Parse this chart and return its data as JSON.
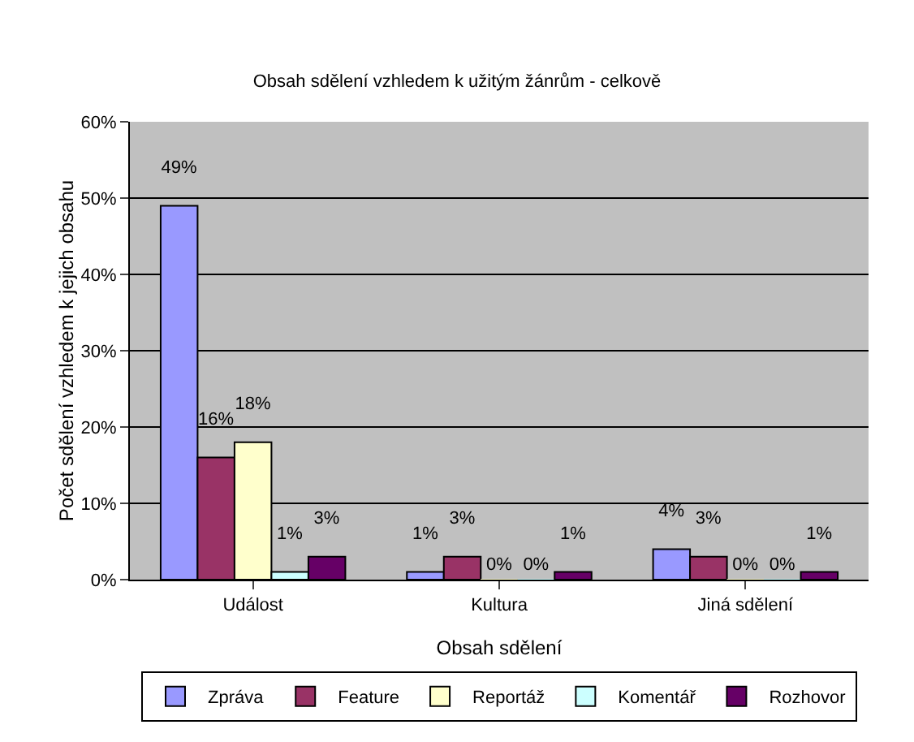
{
  "chart_data": {
    "type": "bar",
    "title": "Obsah sdělení vzhledem k užitým žánrům - celkově",
    "xlabel": "Obsah sdělení",
    "ylabel": "Počet sdělení vzhledem k jejich obsahu",
    "categories": [
      "Událost",
      "Kultura",
      "Jiná sdělení"
    ],
    "series": [
      {
        "name": "Zpráva",
        "color": "#9999ff",
        "values": [
          49,
          1,
          4
        ],
        "value_labels": [
          "49%",
          "1%",
          "4%"
        ]
      },
      {
        "name": "Feature",
        "color": "#993366",
        "values": [
          16,
          3,
          3
        ],
        "value_labels": [
          "16%",
          "3%",
          "3%"
        ]
      },
      {
        "name": "Reportáž",
        "color": "#ffffcc",
        "values": [
          18,
          0,
          0
        ],
        "value_labels": [
          "18%",
          "0%",
          "0%"
        ]
      },
      {
        "name": "Komentář",
        "color": "#ccffff",
        "values": [
          1,
          0,
          0
        ],
        "value_labels": [
          "1%",
          "0%",
          "0%"
        ]
      },
      {
        "name": "Rozhovor",
        "color": "#660066",
        "values": [
          3,
          1,
          1
        ],
        "value_labels": [
          "3%",
          "1%",
          "1%"
        ]
      }
    ],
    "ylim": [
      0,
      60
    ],
    "yticks": [
      {
        "value": 0,
        "label": "0%"
      },
      {
        "value": 10,
        "label": "10%"
      },
      {
        "value": 20,
        "label": "20%"
      },
      {
        "value": 30,
        "label": "30%"
      },
      {
        "value": 40,
        "label": "40%"
      },
      {
        "value": 50,
        "label": "50%"
      },
      {
        "value": 60,
        "label": "60%"
      }
    ],
    "grid": "y",
    "legend": "bottom"
  }
}
